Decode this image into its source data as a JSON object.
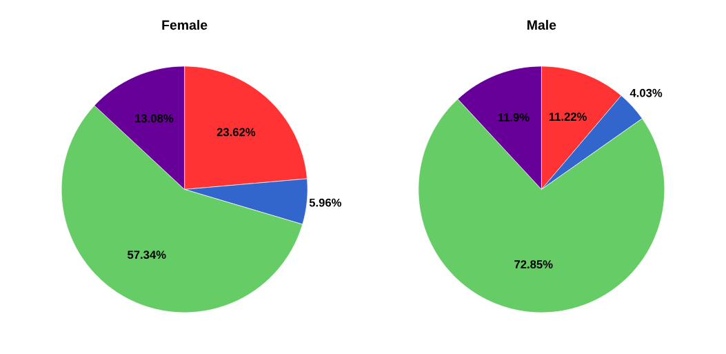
{
  "chart_data": [
    {
      "type": "pie",
      "title": "Female",
      "categories": [
        null,
        null,
        null,
        null
      ],
      "values": [
        23.62,
        5.96,
        57.34,
        13.08
      ],
      "colors": [
        "#ff3333",
        "#3366cc",
        "#66cc66",
        "#660099"
      ],
      "value_labels": [
        "23.62%",
        "5.96%",
        "57.34%",
        "13.08%"
      ]
    },
    {
      "type": "pie",
      "title": "Male",
      "categories": [
        null,
        null,
        null,
        null
      ],
      "values": [
        11.22,
        4.03,
        72.85,
        11.9
      ],
      "colors": [
        "#ff3333",
        "#3366cc",
        "#66cc66",
        "#660099"
      ],
      "value_labels": [
        "11.22%",
        "4.03%",
        "72.85%",
        "11.9%"
      ]
    }
  ]
}
